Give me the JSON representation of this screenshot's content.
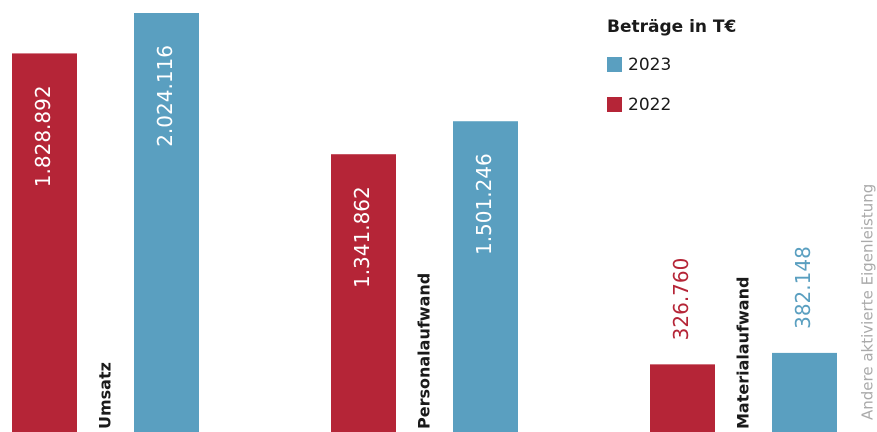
{
  "chart_data": {
    "type": "bar",
    "legend_title": "Beträge in T€",
    "annotation": "Andere aktivierte Eigenleistung",
    "categories": [
      "Umsatz",
      "Personalaufwand",
      "Materialaufwand"
    ],
    "series": [
      {
        "name": "2022",
        "color": "#b52537",
        "values": [
          1828892,
          1341862,
          326760
        ],
        "value_labels": [
          "1.828.892",
          "1.341.862",
          "326.760"
        ]
      },
      {
        "name": "2023",
        "color": "#5a9fc0",
        "values": [
          2024116,
          1501246,
          382148
        ],
        "value_labels": [
          "2.024.116",
          "1.501.246",
          "382.148"
        ]
      }
    ]
  }
}
